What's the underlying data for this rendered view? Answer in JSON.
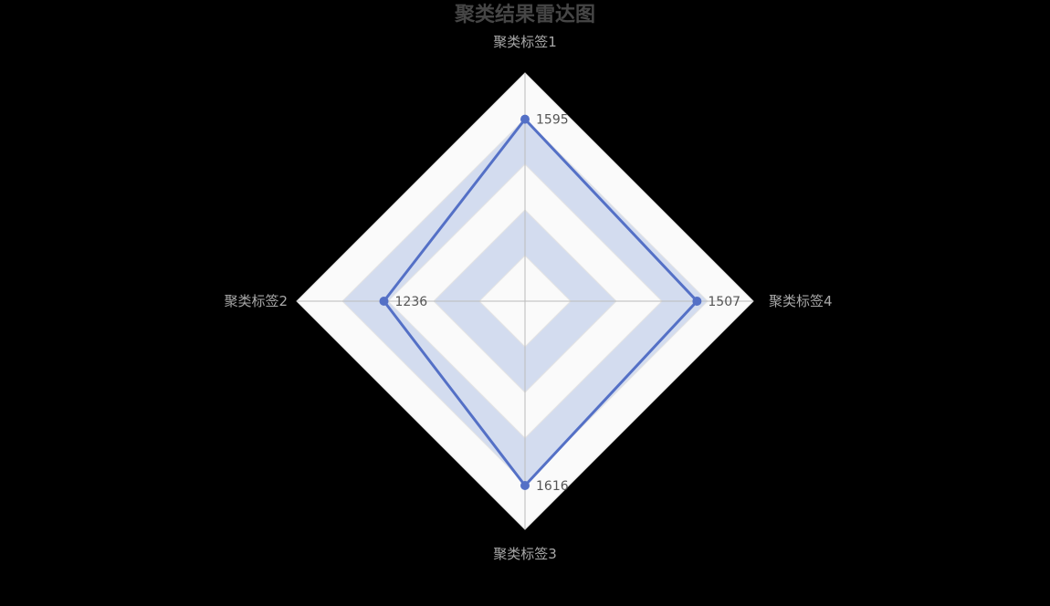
{
  "chart_data": {
    "type": "radar",
    "title": "聚类结果雷达图",
    "indicators": [
      "聚类标签1",
      "聚类标签2",
      "聚类标签3",
      "聚类标签4"
    ],
    "max": 2000,
    "split_number": 5,
    "series": [
      {
        "values": [
          1595,
          1236,
          1616,
          1507
        ],
        "value_labels": [
          "1595",
          "1236",
          "1616",
          "1507"
        ]
      }
    ],
    "colors": {
      "line": "#5470c6",
      "split_band_light": "#fafafa",
      "split_band_dark": "#d3dcef",
      "axis_line": "#bbbbbb",
      "title": "#464646",
      "axis_name": "#a8a8a8",
      "background": "#000000"
    }
  }
}
